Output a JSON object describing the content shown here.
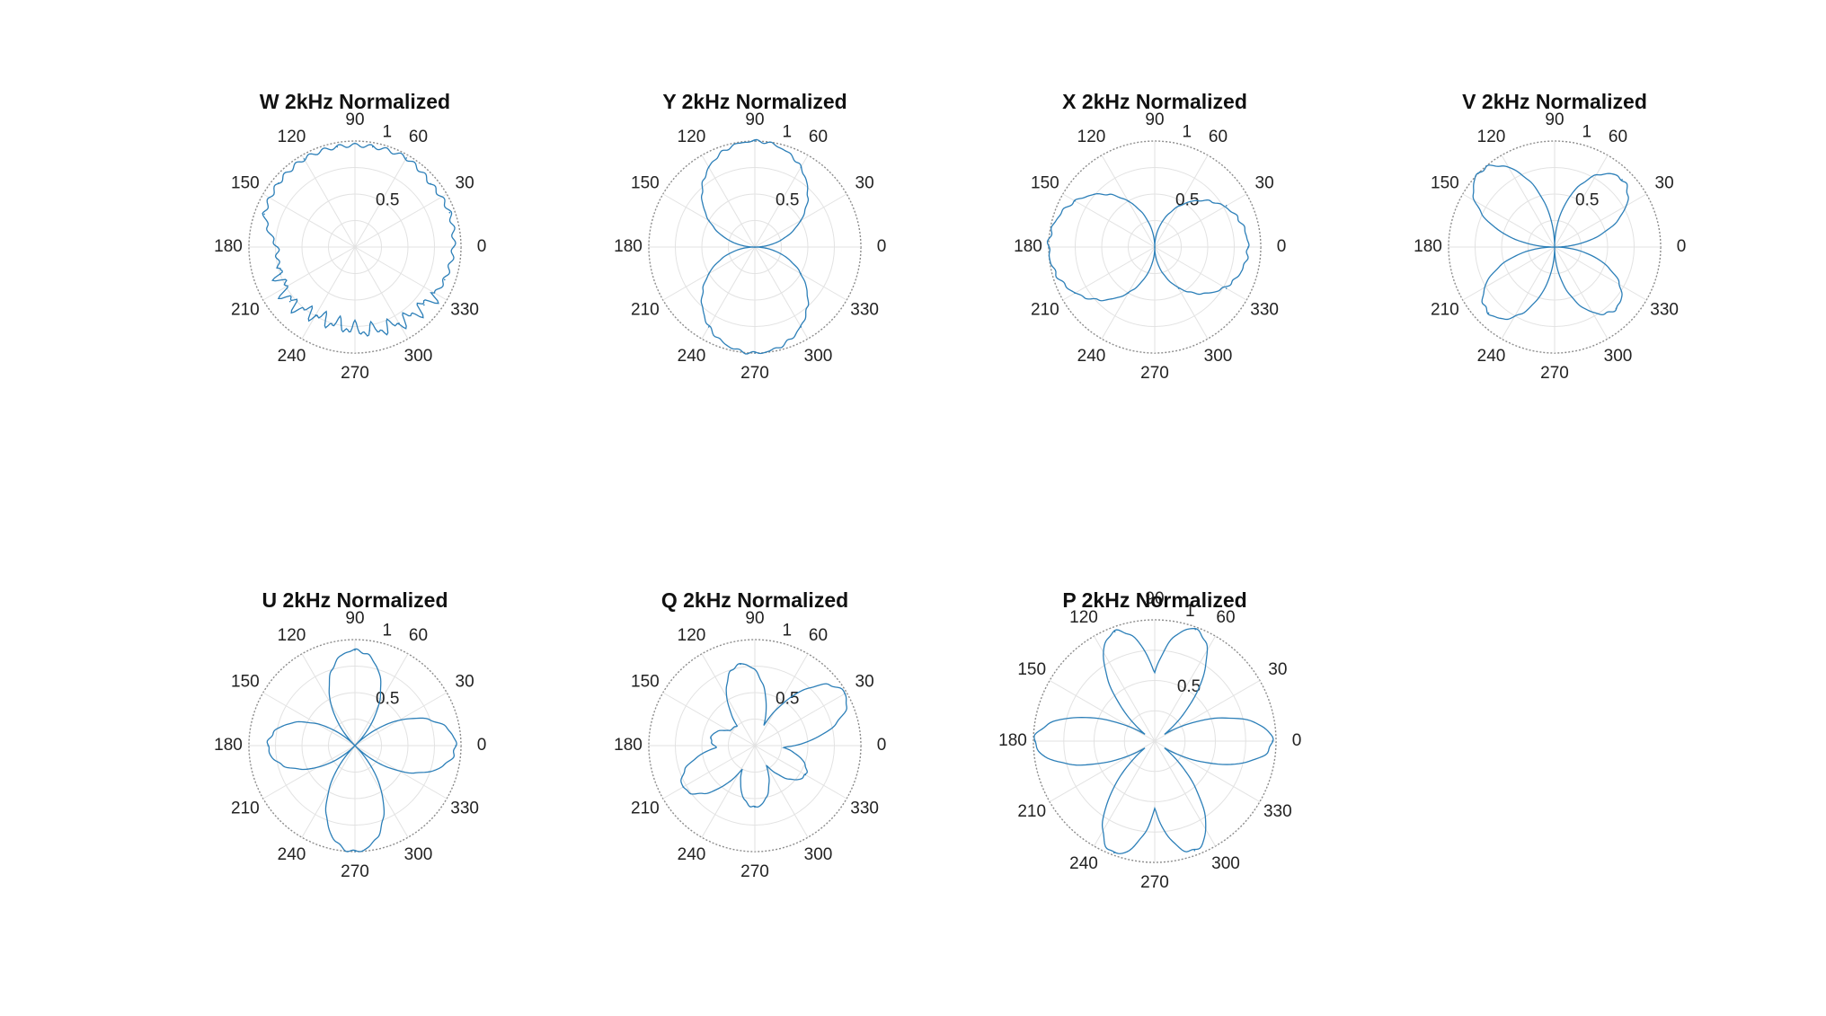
{
  "figure": {
    "background": "#ffffff"
  },
  "style": {
    "line_color": "#2c7fb8",
    "grid_color": "#e2e2e2",
    "outer_ring_color": "#8c8c8c",
    "text_color": "#222222"
  },
  "chart_data": [
    {
      "type": "polar",
      "title": "W 2kHz Normalized",
      "theta_ticks": [
        "0",
        "30",
        "60",
        "90",
        "120",
        "150",
        "180",
        "210",
        "240",
        "270",
        "300",
        "330"
      ],
      "r_ticks": [
        "0.5",
        "1"
      ],
      "rlim": [
        0,
        1
      ],
      "grid": true,
      "pattern": "omni",
      "points": [
        {
          "theta": 0,
          "r": 0.93
        },
        {
          "theta": 20,
          "r": 0.95
        },
        {
          "theta": 40,
          "r": 0.93
        },
        {
          "theta": 60,
          "r": 0.97
        },
        {
          "theta": 80,
          "r": 0.96
        },
        {
          "theta": 100,
          "r": 0.96
        },
        {
          "theta": 120,
          "r": 0.96
        },
        {
          "theta": 140,
          "r": 0.94
        },
        {
          "theta": 160,
          "r": 0.91
        },
        {
          "theta": 180,
          "r": 0.73
        },
        {
          "theta": 200,
          "r": 0.75
        },
        {
          "theta": 220,
          "r": 0.8
        },
        {
          "theta": 240,
          "r": 0.74
        },
        {
          "theta": 260,
          "r": 0.75
        },
        {
          "theta": 280,
          "r": 0.8
        },
        {
          "theta": 300,
          "r": 0.83
        },
        {
          "theta": 320,
          "r": 0.85
        },
        {
          "theta": 340,
          "r": 0.9
        }
      ]
    },
    {
      "type": "polar",
      "title": "Y 2kHz Normalized",
      "theta_ticks": [
        "0",
        "30",
        "60",
        "90",
        "120",
        "150",
        "180",
        "210",
        "240",
        "270",
        "300",
        "330"
      ],
      "r_ticks": [
        "0.5",
        "1"
      ],
      "rlim": [
        0,
        1
      ],
      "grid": true,
      "pattern": "dipole-sin",
      "points": [
        {
          "theta": 0,
          "r": 0.0
        },
        {
          "theta": 30,
          "r": 0.5
        },
        {
          "theta": 60,
          "r": 0.87
        },
        {
          "theta": 90,
          "r": 1.0
        },
        {
          "theta": 120,
          "r": 0.87
        },
        {
          "theta": 150,
          "r": 0.5
        },
        {
          "theta": 180,
          "r": 0.0
        },
        {
          "theta": 210,
          "r": 0.5
        },
        {
          "theta": 240,
          "r": 0.87
        },
        {
          "theta": 270,
          "r": 1.0
        },
        {
          "theta": 300,
          "r": 0.87
        },
        {
          "theta": 330,
          "r": 0.5
        }
      ]
    },
    {
      "type": "polar",
      "title": "X 2kHz Normalized",
      "theta_ticks": [
        "0",
        "30",
        "60",
        "90",
        "120",
        "150",
        "180",
        "210",
        "240",
        "270",
        "300",
        "330"
      ],
      "r_ticks": [
        "0.5",
        "1"
      ],
      "rlim": [
        0,
        1
      ],
      "grid": true,
      "pattern": "dipole-cos",
      "points": [
        {
          "theta": 0,
          "r": 0.88
        },
        {
          "theta": 30,
          "r": 0.78
        },
        {
          "theta": 60,
          "r": 0.45
        },
        {
          "theta": 90,
          "r": 0.0
        },
        {
          "theta": 120,
          "r": 0.5
        },
        {
          "theta": 150,
          "r": 0.87
        },
        {
          "theta": 180,
          "r": 1.0
        },
        {
          "theta": 210,
          "r": 0.87
        },
        {
          "theta": 240,
          "r": 0.5
        },
        {
          "theta": 270,
          "r": 0.0
        },
        {
          "theta": 300,
          "r": 0.45
        },
        {
          "theta": 330,
          "r": 0.78
        }
      ]
    },
    {
      "type": "polar",
      "title": "V 2kHz Normalized",
      "theta_ticks": [
        "0",
        "30",
        "60",
        "90",
        "120",
        "150",
        "180",
        "210",
        "240",
        "270",
        "300",
        "330"
      ],
      "r_ticks": [
        "0.5",
        "1"
      ],
      "rlim": [
        0,
        1
      ],
      "grid": true,
      "pattern": "quadrupole-sin2",
      "points": [
        {
          "theta": 0,
          "r": 0.0
        },
        {
          "theta": 45,
          "r": 0.9
        },
        {
          "theta": 90,
          "r": 0.0
        },
        {
          "theta": 135,
          "r": 1.0
        },
        {
          "theta": 180,
          "r": 0.0
        },
        {
          "theta": 225,
          "r": 0.88
        },
        {
          "theta": 270,
          "r": 0.0
        },
        {
          "theta": 315,
          "r": 0.82
        }
      ]
    },
    {
      "type": "polar",
      "title": "U 2kHz Normalized",
      "theta_ticks": [
        "0",
        "30",
        "60",
        "90",
        "120",
        "150",
        "180",
        "210",
        "240",
        "270",
        "300",
        "330"
      ],
      "r_ticks": [
        "0.5",
        "1"
      ],
      "rlim": [
        0,
        1
      ],
      "grid": true,
      "pattern": "quadrupole-cos2",
      "points": [
        {
          "theta": 0,
          "r": 0.95
        },
        {
          "theta": 45,
          "r": 0.0
        },
        {
          "theta": 90,
          "r": 0.9
        },
        {
          "theta": 135,
          "r": 0.0
        },
        {
          "theta": 180,
          "r": 0.82
        },
        {
          "theta": 225,
          "r": 0.0
        },
        {
          "theta": 270,
          "r": 1.0
        },
        {
          "theta": 315,
          "r": 0.0
        }
      ]
    },
    {
      "type": "polar",
      "title": "Q 2kHz Normalized",
      "theta_ticks": [
        "0",
        "30",
        "60",
        "90",
        "120",
        "150",
        "180",
        "210",
        "240",
        "270",
        "300",
        "330"
      ],
      "r_ticks": [
        "0.5",
        "1"
      ],
      "rlim": [
        0,
        1
      ],
      "grid": true,
      "pattern": "hexapole-irregular",
      "points": [
        {
          "theta": 30,
          "r": 0.98
        },
        {
          "theta": 100,
          "r": 0.78
        },
        {
          "theta": 170,
          "r": 0.42
        },
        {
          "theta": 210,
          "r": 0.78
        },
        {
          "theta": 270,
          "r": 0.58
        },
        {
          "theta": 330,
          "r": 0.55
        }
      ]
    },
    {
      "type": "polar",
      "title": "P 2kHz Normalized",
      "theta_ticks": [
        "0",
        "30",
        "60",
        "90",
        "120",
        "150",
        "180",
        "210",
        "240",
        "270",
        "300",
        "330"
      ],
      "r_ticks": [
        "0.5",
        "1"
      ],
      "rlim": [
        0,
        1
      ],
      "grid": true,
      "pattern": "hexapole",
      "points": [
        {
          "theta": 0,
          "r": 0.97
        },
        {
          "theta": 70,
          "r": 0.98
        },
        {
          "theta": 110,
          "r": 0.96
        },
        {
          "theta": 180,
          "r": 0.99
        },
        {
          "theta": 250,
          "r": 0.98
        },
        {
          "theta": 290,
          "r": 0.96
        }
      ]
    }
  ]
}
